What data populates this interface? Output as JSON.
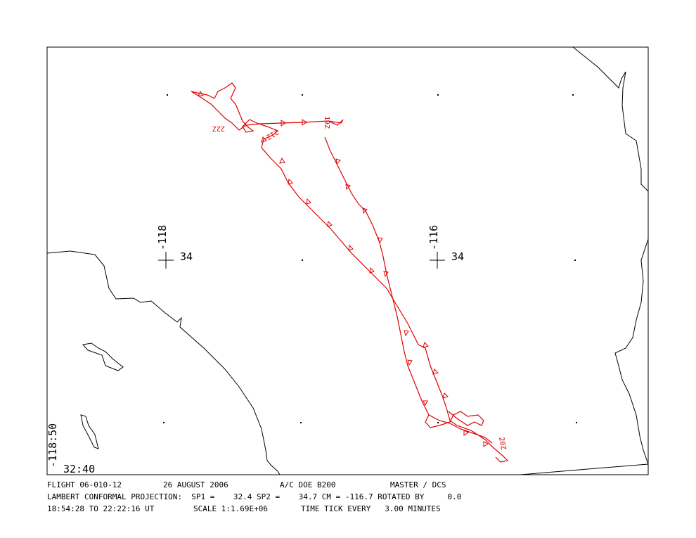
{
  "map": {
    "graticule": [
      {
        "lon": "-118",
        "lat": "34"
      },
      {
        "lon": "-116",
        "lat": "34"
      }
    ],
    "corner": {
      "lon": "-118:50",
      "lat": "32:40"
    },
    "time_labels": [
      "19Z",
      "22Z",
      "21Z",
      "20Z"
    ]
  },
  "footer": {
    "line1": [
      "FLIGHT 06-010-12",
      "26 AUGUST 2006",
      "A/C DOE B200",
      "MASTER / DCS"
    ],
    "line2": "LAMBERT CONFORMAL PROJECTION:  SP1 =    32.4 SP2 =    34.7 CM = -116.7 ROTATED BY     0.0",
    "line3": [
      "18:54:28 TO 22:22:16 UT",
      "SCALE 1:1.69E+06",
      "TIME TICK EVERY   3.00 MINUTES"
    ]
  }
}
